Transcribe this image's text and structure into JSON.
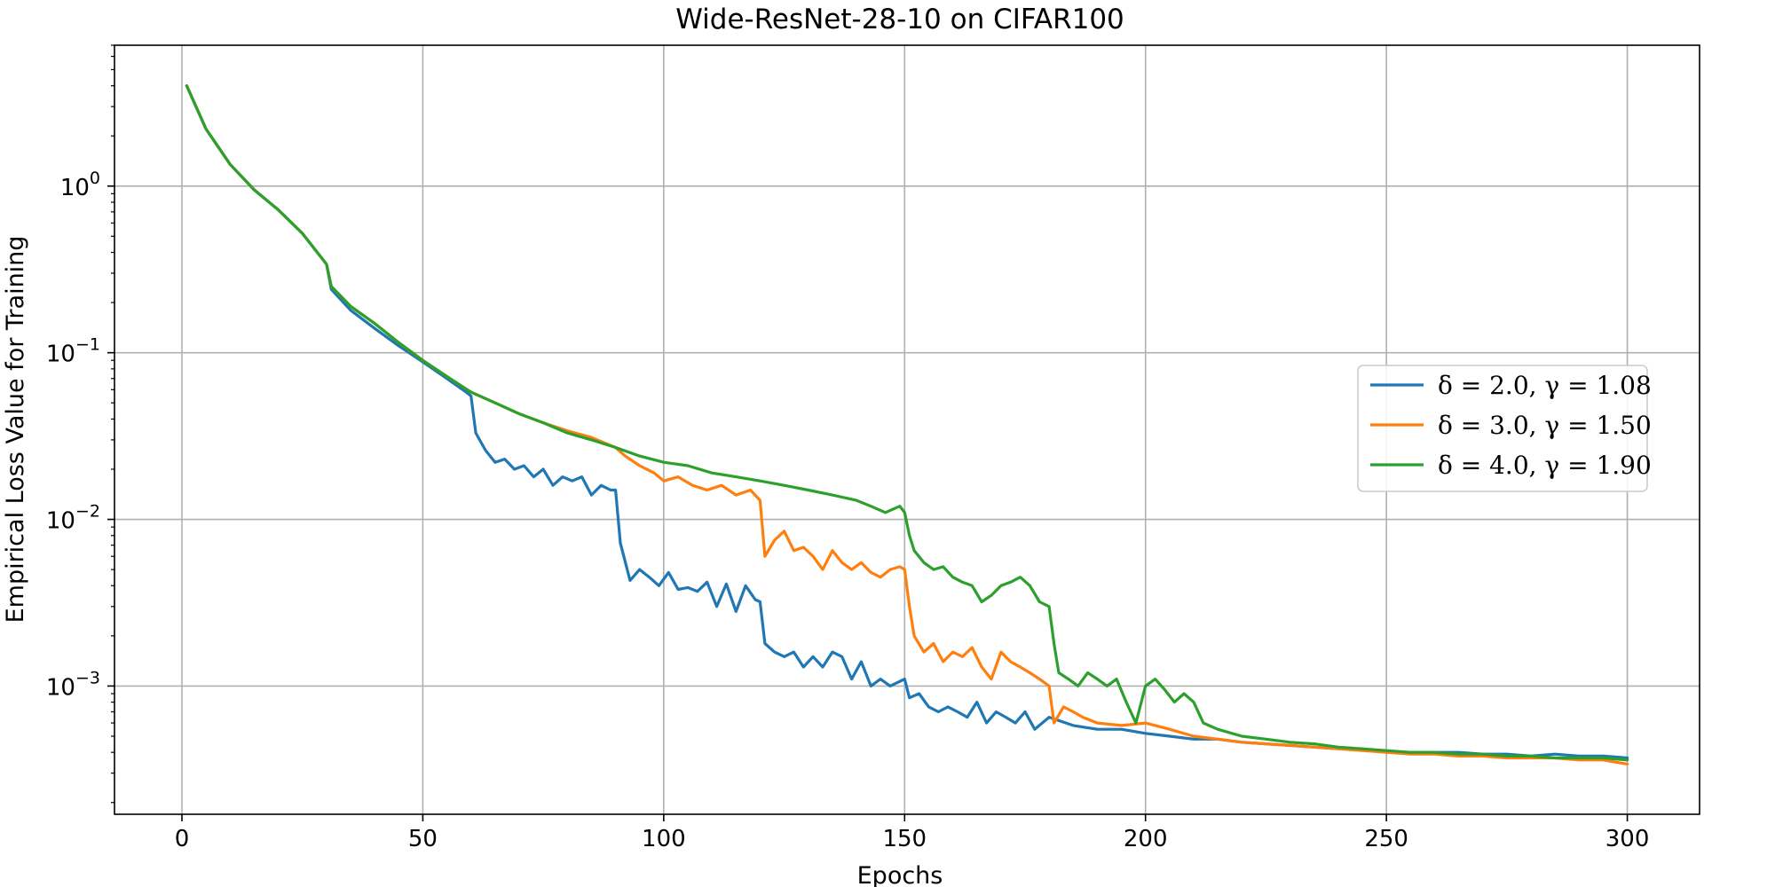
{
  "chart_data": {
    "type": "line",
    "title": "Wide-ResNet-28-10 on CIFAR100",
    "xlabel": "Epochs",
    "ylabel": "Empirical Loss Value for Training",
    "xlim": [
      -14,
      315
    ],
    "ylim": [
      0.00017,
      7
    ],
    "yscale": "log",
    "grid": true,
    "legend_position": "center-right",
    "x_ticks": [
      0,
      50,
      100,
      150,
      200,
      250,
      300
    ],
    "y_ticks": [
      {
        "value": 0.001,
        "base": "10",
        "exp": "−3"
      },
      {
        "value": 0.01,
        "base": "10",
        "exp": "−2"
      },
      {
        "value": 0.1,
        "base": "10",
        "exp": "−1"
      },
      {
        "value": 1,
        "base": "10",
        "exp": "0"
      }
    ],
    "series": [
      {
        "name": "δ = 2.0, γ = 1.08",
        "color": "#1f77b4",
        "points": [
          [
            1,
            4.0
          ],
          [
            5,
            2.2
          ],
          [
            10,
            1.35
          ],
          [
            15,
            0.95
          ],
          [
            20,
            0.72
          ],
          [
            25,
            0.52
          ],
          [
            30,
            0.34
          ],
          [
            31,
            0.24
          ],
          [
            35,
            0.18
          ],
          [
            40,
            0.14
          ],
          [
            45,
            0.11
          ],
          [
            50,
            0.088
          ],
          [
            55,
            0.07
          ],
          [
            59,
            0.058
          ],
          [
            60,
            0.055
          ],
          [
            61,
            0.033
          ],
          [
            63,
            0.026
          ],
          [
            65,
            0.022
          ],
          [
            67,
            0.023
          ],
          [
            69,
            0.02
          ],
          [
            71,
            0.021
          ],
          [
            73,
            0.018
          ],
          [
            75,
            0.02
          ],
          [
            77,
            0.016
          ],
          [
            79,
            0.018
          ],
          [
            81,
            0.017
          ],
          [
            83,
            0.018
          ],
          [
            85,
            0.014
          ],
          [
            87,
            0.016
          ],
          [
            89,
            0.015
          ],
          [
            90,
            0.015
          ],
          [
            91,
            0.0072
          ],
          [
            93,
            0.0043
          ],
          [
            95,
            0.005
          ],
          [
            97,
            0.0045
          ],
          [
            99,
            0.004
          ],
          [
            101,
            0.0048
          ],
          [
            103,
            0.0038
          ],
          [
            105,
            0.0039
          ],
          [
            107,
            0.0037
          ],
          [
            109,
            0.0042
          ],
          [
            111,
            0.003
          ],
          [
            113,
            0.0041
          ],
          [
            115,
            0.0028
          ],
          [
            117,
            0.004
          ],
          [
            119,
            0.0033
          ],
          [
            120,
            0.0032
          ],
          [
            121,
            0.0018
          ],
          [
            123,
            0.0016
          ],
          [
            125,
            0.0015
          ],
          [
            127,
            0.0016
          ],
          [
            129,
            0.0013
          ],
          [
            131,
            0.0015
          ],
          [
            133,
            0.0013
          ],
          [
            135,
            0.0016
          ],
          [
            137,
            0.0015
          ],
          [
            139,
            0.0011
          ],
          [
            141,
            0.0014
          ],
          [
            143,
            0.001
          ],
          [
            145,
            0.0011
          ],
          [
            147,
            0.001
          ],
          [
            150,
            0.0011
          ],
          [
            151,
            0.00085
          ],
          [
            153,
            0.0009
          ],
          [
            155,
            0.00075
          ],
          [
            157,
            0.0007
          ],
          [
            159,
            0.00075
          ],
          [
            161,
            0.0007
          ],
          [
            163,
            0.00065
          ],
          [
            165,
            0.0008
          ],
          [
            167,
            0.0006
          ],
          [
            169,
            0.0007
          ],
          [
            171,
            0.00065
          ],
          [
            173,
            0.0006
          ],
          [
            175,
            0.0007
          ],
          [
            177,
            0.00055
          ],
          [
            180,
            0.00065
          ],
          [
            185,
            0.00058
          ],
          [
            190,
            0.00055
          ],
          [
            195,
            0.00055
          ],
          [
            200,
            0.00052
          ],
          [
            205,
            0.0005
          ],
          [
            210,
            0.00048
          ],
          [
            215,
            0.00048
          ],
          [
            220,
            0.00046
          ],
          [
            225,
            0.00045
          ],
          [
            230,
            0.00044
          ],
          [
            235,
            0.00043
          ],
          [
            240,
            0.00042
          ],
          [
            245,
            0.00042
          ],
          [
            250,
            0.0004
          ],
          [
            255,
            0.0004
          ],
          [
            260,
            0.0004
          ],
          [
            265,
            0.0004
          ],
          [
            270,
            0.00039
          ],
          [
            275,
            0.00039
          ],
          [
            280,
            0.00038
          ],
          [
            285,
            0.00039
          ],
          [
            290,
            0.00038
          ],
          [
            295,
            0.00038
          ],
          [
            300,
            0.00037
          ]
        ]
      },
      {
        "name": "δ = 3.0, γ = 1.50",
        "color": "#ff7f0e",
        "points": [
          [
            1,
            4.0
          ],
          [
            5,
            2.2
          ],
          [
            10,
            1.35
          ],
          [
            15,
            0.95
          ],
          [
            20,
            0.72
          ],
          [
            25,
            0.52
          ],
          [
            30,
            0.34
          ],
          [
            31,
            0.25
          ],
          [
            35,
            0.19
          ],
          [
            40,
            0.15
          ],
          [
            45,
            0.115
          ],
          [
            50,
            0.09
          ],
          [
            55,
            0.072
          ],
          [
            60,
            0.058
          ],
          [
            65,
            0.05
          ],
          [
            70,
            0.043
          ],
          [
            75,
            0.038
          ],
          [
            80,
            0.034
          ],
          [
            85,
            0.031
          ],
          [
            90,
            0.027
          ],
          [
            92,
            0.024
          ],
          [
            95,
            0.021
          ],
          [
            98,
            0.019
          ],
          [
            100,
            0.017
          ],
          [
            103,
            0.018
          ],
          [
            106,
            0.016
          ],
          [
            109,
            0.015
          ],
          [
            112,
            0.016
          ],
          [
            115,
            0.014
          ],
          [
            118,
            0.015
          ],
          [
            120,
            0.013
          ],
          [
            121,
            0.006
          ],
          [
            123,
            0.0075
          ],
          [
            125,
            0.0085
          ],
          [
            127,
            0.0065
          ],
          [
            129,
            0.0068
          ],
          [
            131,
            0.006
          ],
          [
            133,
            0.005
          ],
          [
            135,
            0.0065
          ],
          [
            137,
            0.0055
          ],
          [
            139,
            0.005
          ],
          [
            141,
            0.0055
          ],
          [
            143,
            0.0048
          ],
          [
            145,
            0.0045
          ],
          [
            147,
            0.005
          ],
          [
            149,
            0.0052
          ],
          [
            150,
            0.005
          ],
          [
            151,
            0.003
          ],
          [
            152,
            0.002
          ],
          [
            154,
            0.0016
          ],
          [
            156,
            0.0018
          ],
          [
            158,
            0.0014
          ],
          [
            160,
            0.0016
          ],
          [
            162,
            0.0015
          ],
          [
            164,
            0.0017
          ],
          [
            166,
            0.0013
          ],
          [
            168,
            0.0011
          ],
          [
            170,
            0.0016
          ],
          [
            172,
            0.0014
          ],
          [
            174,
            0.0013
          ],
          [
            176,
            0.0012
          ],
          [
            178,
            0.0011
          ],
          [
            180,
            0.001
          ],
          [
            181,
            0.0006
          ],
          [
            183,
            0.00075
          ],
          [
            185,
            0.0007
          ],
          [
            187,
            0.00065
          ],
          [
            190,
            0.0006
          ],
          [
            195,
            0.00058
          ],
          [
            200,
            0.0006
          ],
          [
            205,
            0.00055
          ],
          [
            210,
            0.0005
          ],
          [
            215,
            0.00048
          ],
          [
            220,
            0.00046
          ],
          [
            225,
            0.00045
          ],
          [
            230,
            0.00044
          ],
          [
            235,
            0.00043
          ],
          [
            240,
            0.00042
          ],
          [
            245,
            0.00041
          ],
          [
            250,
            0.0004
          ],
          [
            255,
            0.00039
          ],
          [
            260,
            0.00039
          ],
          [
            265,
            0.00038
          ],
          [
            270,
            0.00038
          ],
          [
            275,
            0.00037
          ],
          [
            280,
            0.00037
          ],
          [
            285,
            0.00037
          ],
          [
            290,
            0.00036
          ],
          [
            295,
            0.00036
          ],
          [
            300,
            0.00034
          ]
        ]
      },
      {
        "name": "δ = 4.0, γ = 1.90",
        "color": "#2ca02c",
        "points": [
          [
            1,
            4.0
          ],
          [
            5,
            2.2
          ],
          [
            10,
            1.35
          ],
          [
            15,
            0.95
          ],
          [
            20,
            0.72
          ],
          [
            25,
            0.52
          ],
          [
            30,
            0.34
          ],
          [
            31,
            0.25
          ],
          [
            35,
            0.19
          ],
          [
            40,
            0.15
          ],
          [
            45,
            0.115
          ],
          [
            50,
            0.09
          ],
          [
            55,
            0.072
          ],
          [
            60,
            0.058
          ],
          [
            65,
            0.05
          ],
          [
            70,
            0.043
          ],
          [
            75,
            0.038
          ],
          [
            80,
            0.033
          ],
          [
            85,
            0.03
          ],
          [
            90,
            0.027
          ],
          [
            95,
            0.024
          ],
          [
            100,
            0.022
          ],
          [
            105,
            0.021
          ],
          [
            110,
            0.019
          ],
          [
            115,
            0.018
          ],
          [
            120,
            0.017
          ],
          [
            125,
            0.016
          ],
          [
            130,
            0.015
          ],
          [
            135,
            0.014
          ],
          [
            140,
            0.013
          ],
          [
            143,
            0.012
          ],
          [
            146,
            0.011
          ],
          [
            149,
            0.012
          ],
          [
            150,
            0.011
          ],
          [
            151,
            0.008
          ],
          [
            152,
            0.0065
          ],
          [
            154,
            0.0055
          ],
          [
            156,
            0.005
          ],
          [
            158,
            0.0052
          ],
          [
            160,
            0.0045
          ],
          [
            162,
            0.0042
          ],
          [
            164,
            0.004
          ],
          [
            166,
            0.0032
          ],
          [
            168,
            0.0035
          ],
          [
            170,
            0.004
          ],
          [
            172,
            0.0042
          ],
          [
            174,
            0.0045
          ],
          [
            176,
            0.004
          ],
          [
            178,
            0.0032
          ],
          [
            180,
            0.003
          ],
          [
            181,
            0.0018
          ],
          [
            182,
            0.0012
          ],
          [
            184,
            0.0011
          ],
          [
            186,
            0.001
          ],
          [
            188,
            0.0012
          ],
          [
            190,
            0.0011
          ],
          [
            192,
            0.001
          ],
          [
            194,
            0.0011
          ],
          [
            196,
            0.0008
          ],
          [
            198,
            0.0006
          ],
          [
            200,
            0.001
          ],
          [
            202,
            0.0011
          ],
          [
            204,
            0.00095
          ],
          [
            206,
            0.0008
          ],
          [
            208,
            0.0009
          ],
          [
            210,
            0.0008
          ],
          [
            212,
            0.0006
          ],
          [
            215,
            0.00055
          ],
          [
            220,
            0.0005
          ],
          [
            225,
            0.00048
          ],
          [
            230,
            0.00046
          ],
          [
            235,
            0.00045
          ],
          [
            240,
            0.00043
          ],
          [
            245,
            0.00042
          ],
          [
            250,
            0.00041
          ],
          [
            255,
            0.0004
          ],
          [
            260,
            0.0004
          ],
          [
            265,
            0.00039
          ],
          [
            270,
            0.00039
          ],
          [
            275,
            0.00038
          ],
          [
            280,
            0.00038
          ],
          [
            285,
            0.00037
          ],
          [
            290,
            0.00037
          ],
          [
            295,
            0.00037
          ],
          [
            300,
            0.00036
          ]
        ]
      }
    ]
  }
}
